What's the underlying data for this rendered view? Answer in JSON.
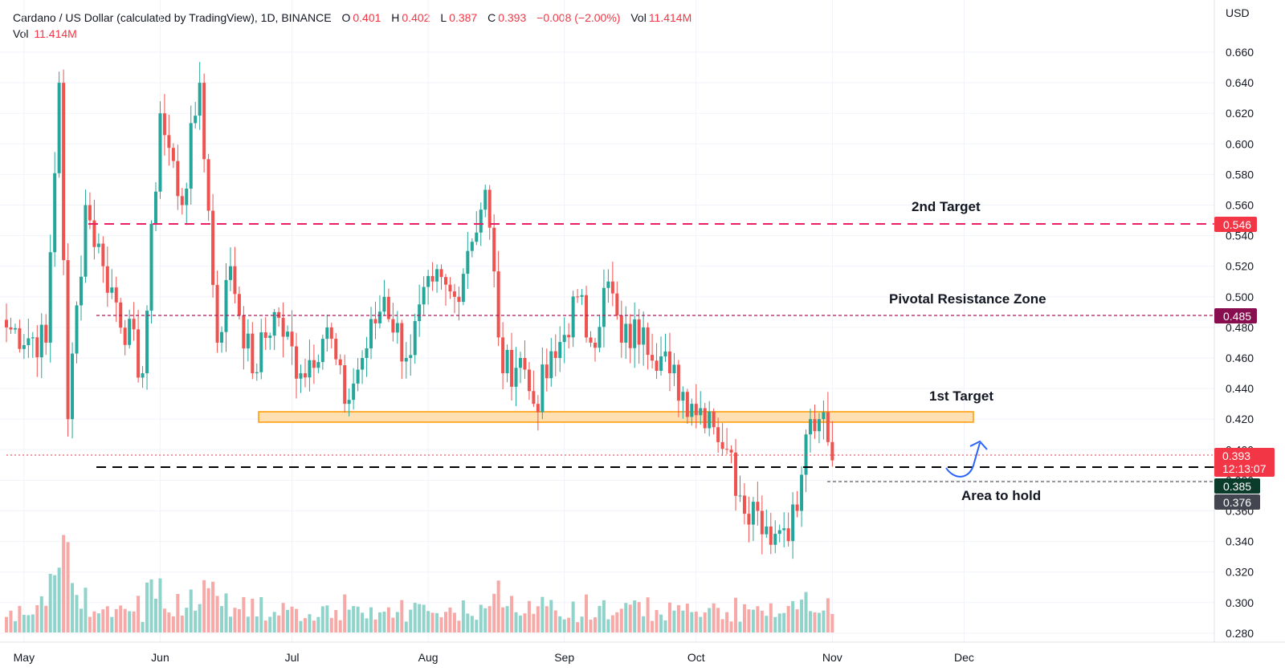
{
  "header": {
    "title": "Cardano / US Dollar (calculated by TradingView), 1D, BINANCE",
    "o_label": "O",
    "o_value": "0.401",
    "h_label": "H",
    "h_value": "0.402",
    "l_label": "L",
    "l_value": "0.387",
    "c_label": "C",
    "c_value": "0.393",
    "change": "−0.008 (−2.00%)",
    "vol_label": "Vol",
    "vol_value": "11.414M",
    "vol2_label": "Vol",
    "vol2_value": "11.414M"
  },
  "axis": {
    "currency": "USD",
    "y_ticks": [
      "0.660",
      "0.640",
      "0.620",
      "0.600",
      "0.580",
      "0.560",
      "0.540",
      "0.520",
      "0.500",
      "0.480",
      "0.460",
      "0.440",
      "0.420",
      "0.400",
      "0.380",
      "0.360",
      "0.340",
      "0.320",
      "0.300",
      "0.280"
    ],
    "x_labels": [
      "May",
      "Jun",
      "Jul",
      "Aug",
      "Sep",
      "Oct",
      "Nov",
      "Dec"
    ]
  },
  "annotations": {
    "second_target": "2nd Target",
    "pivotal": "Pivotal Resistance Zone",
    "first_target": "1st Target",
    "area_to_hold": "Area to hold"
  },
  "price_tags": {
    "target2": "0.546",
    "pivot": "0.485",
    "last": "0.393",
    "countdown": "12:13:07",
    "support": "0.385",
    "low": "0.376"
  },
  "colors": {
    "up": "#26a69a",
    "down": "#ef5350",
    "up_volume": "#8fd3cb",
    "down_volume": "#f7a9a7",
    "target_line": "#e91e63",
    "pivot_line": "#b0185a",
    "zone_fill": "#ffe0b2",
    "zone_border": "#ff9800",
    "support_line": "#000000",
    "arrow": "#2962ff"
  },
  "chart_data": {
    "type": "candlestick",
    "symbol": "Cardano / US Dollar",
    "interval": "1D",
    "exchange": "BINANCE",
    "ylim": [
      0.27,
      0.67
    ],
    "levels": [
      {
        "name": "2nd Target",
        "price": 0.546,
        "style": "dashed"
      },
      {
        "name": "Pivotal Resistance Zone",
        "price": 0.485,
        "style": "dotted"
      },
      {
        "name": "1st Target",
        "price_range": [
          0.417,
          0.423
        ],
        "style": "zone"
      },
      {
        "name": "Area to hold",
        "price": 0.385,
        "style": "dashed"
      },
      {
        "price": 0.376,
        "style": "dotted"
      }
    ],
    "anchors": [
      {
        "date": "2024-04-27",
        "close": 0.48
      },
      {
        "date": "2024-05-06",
        "close": 0.47
      },
      {
        "date": "2024-05-09",
        "close": 0.64
      },
      {
        "date": "2024-05-11",
        "close": 0.42
      },
      {
        "date": "2024-05-15",
        "close": 0.56
      },
      {
        "date": "2024-05-19",
        "close": 0.52
      },
      {
        "date": "2024-05-28",
        "close": 0.45
      },
      {
        "date": "2024-06-01",
        "close": 0.62
      },
      {
        "date": "2024-06-06",
        "close": 0.56
      },
      {
        "date": "2024-06-10",
        "close": 0.64
      },
      {
        "date": "2024-06-14",
        "close": 0.47
      },
      {
        "date": "2024-06-17",
        "close": 0.52
      },
      {
        "date": "2024-06-22",
        "close": 0.45
      },
      {
        "date": "2024-06-27",
        "close": 0.49
      },
      {
        "date": "2024-07-03",
        "close": 0.45
      },
      {
        "date": "2024-07-09",
        "close": 0.48
      },
      {
        "date": "2024-07-13",
        "close": 0.43
      },
      {
        "date": "2024-07-17",
        "close": 0.46
      },
      {
        "date": "2024-07-22",
        "close": 0.5
      },
      {
        "date": "2024-07-27",
        "close": 0.46
      },
      {
        "date": "2024-08-02",
        "close": 0.51
      },
      {
        "date": "2024-08-07",
        "close": 0.5
      },
      {
        "date": "2024-08-10",
        "close": 0.53
      },
      {
        "date": "2024-08-14",
        "close": 0.57
      },
      {
        "date": "2024-08-18",
        "close": 0.45
      },
      {
        "date": "2024-08-22",
        "close": 0.46
      },
      {
        "date": "2024-08-25",
        "close": 0.43
      },
      {
        "date": "2024-08-30",
        "close": 0.46
      },
      {
        "date": "2024-09-04",
        "close": 0.5
      },
      {
        "date": "2024-09-07",
        "close": 0.47
      },
      {
        "date": "2024-09-11",
        "close": 0.51
      },
      {
        "date": "2024-09-14",
        "close": 0.47
      },
      {
        "date": "2024-09-19",
        "close": 0.48
      },
      {
        "date": "2024-09-25",
        "close": 0.45
      },
      {
        "date": "2024-09-30",
        "close": 0.43
      },
      {
        "date": "2024-10-04",
        "close": 0.425
      },
      {
        "date": "2024-10-08",
        "close": 0.4
      },
      {
        "date": "2024-10-11",
        "close": 0.37
      },
      {
        "date": "2024-10-15",
        "close": 0.36
      },
      {
        "date": "2024-10-19",
        "close": 0.345
      },
      {
        "date": "2024-10-24",
        "close": 0.36
      },
      {
        "date": "2024-10-26",
        "close": 0.41
      },
      {
        "date": "2024-10-29",
        "close": 0.42
      },
      {
        "date": "2024-10-31",
        "close": 0.405
      },
      {
        "date": "2024-11-01",
        "close": 0.393
      }
    ]
  }
}
